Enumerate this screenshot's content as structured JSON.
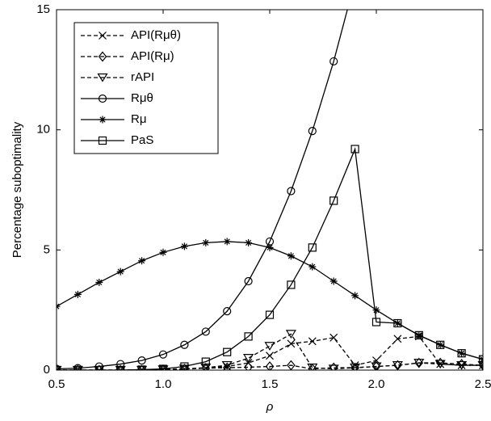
{
  "chart_data": {
    "type": "line",
    "xlabel": "ρ",
    "ylabel": "Percentage  suboptimality",
    "x": [
      0.5,
      0.6,
      0.7,
      0.8,
      0.9,
      1.0,
      1.1,
      1.2,
      1.3,
      1.4,
      1.5,
      1.6,
      1.7,
      1.8,
      1.9,
      2.0,
      2.1,
      2.2,
      2.3,
      2.4,
      2.5
    ],
    "xlim": [
      0.5,
      2.5
    ],
    "xticks": [
      0.5,
      {
        "value": 1,
        "label": "1.0"
      },
      1.5,
      {
        "value": 2,
        "label": "2.0"
      },
      2.5
    ],
    "ylim": [
      0,
      15
    ],
    "yticks": [
      0,
      5,
      10,
      15
    ],
    "legend": "upper left",
    "series": [
      {
        "name": "API(Rμθ)",
        "color": "#000000",
        "dashed": true,
        "marker": "x",
        "values": [
          0.0,
          0.0,
          0.0,
          0.0,
          0.02,
          0.03,
          0.05,
          0.08,
          0.15,
          0.3,
          0.6,
          1.1,
          1.2,
          1.35,
          0.2,
          0.4,
          1.3,
          1.4,
          0.25,
          0.2,
          0.2
        ]
      },
      {
        "name": "API(Rμ)",
        "color": "#000000",
        "dashed": true,
        "marker": "diamond",
        "values": [
          0.0,
          0.0,
          0.0,
          0.0,
          0.0,
          0.02,
          0.05,
          0.08,
          0.1,
          0.12,
          0.15,
          0.2,
          0.05,
          0.1,
          0.1,
          0.15,
          0.2,
          0.3,
          0.3,
          0.25,
          0.2
        ]
      },
      {
        "name": "rAPI",
        "color": "#000000",
        "dashed": true,
        "marker": "triangle",
        "values": [
          0.0,
          0.0,
          0.0,
          0.0,
          0.0,
          0.02,
          0.05,
          0.1,
          0.2,
          0.5,
          1.0,
          1.5,
          0.1,
          0.05,
          0.1,
          0.15,
          0.2,
          0.3,
          0.25,
          0.2,
          0.2
        ]
      },
      {
        "name": "Rμθ",
        "color": "#000000",
        "dashed": false,
        "marker": "circle",
        "values": [
          0.05,
          0.08,
          0.15,
          0.25,
          0.4,
          0.65,
          1.05,
          1.6,
          2.45,
          3.7,
          5.35,
          7.45,
          9.95,
          12.85,
          16.2,
          null,
          null,
          null,
          null,
          null,
          null
        ]
      },
      {
        "name": "Rμ",
        "color": "#000000",
        "dashed": false,
        "marker": "star",
        "values": [
          2.65,
          3.15,
          3.65,
          4.1,
          4.55,
          4.9,
          5.15,
          5.3,
          5.35,
          5.3,
          5.1,
          4.75,
          4.3,
          3.7,
          3.1,
          2.5,
          1.95,
          1.45,
          1.05,
          0.7,
          0.45
        ]
      },
      {
        "name": "PaS",
        "color": "#000000",
        "dashed": false,
        "marker": "square",
        "values": [
          0.0,
          0.0,
          0.0,
          0.0,
          0.02,
          0.05,
          0.15,
          0.35,
          0.75,
          1.4,
          2.3,
          3.55,
          5.1,
          7.05,
          9.2,
          2.0,
          1.95,
          1.45,
          1.05,
          0.7,
          0.45
        ]
      }
    ]
  }
}
